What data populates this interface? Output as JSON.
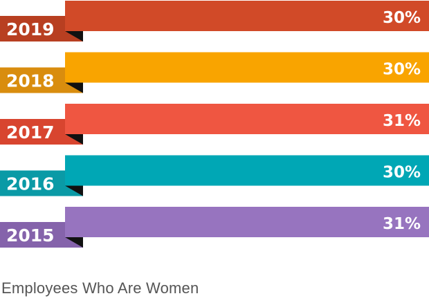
{
  "chart_data": {
    "type": "bar",
    "orientation": "horizontal",
    "categories": [
      "2019",
      "2018",
      "2017",
      "2016",
      "2015"
    ],
    "values": [
      30,
      30,
      31,
      30,
      31
    ],
    "value_suffix": "%",
    "data_labels": [
      "30%",
      "30%",
      "31%",
      "30%",
      "31%"
    ],
    "colors": [
      "#d14a28",
      "#f9a400",
      "#ef5641",
      "#00a7b5",
      "#9774bf"
    ],
    "tab_colors": [
      "#b83f21",
      "#d98d0e",
      "#d8452f",
      "#0a9aa6",
      "#8563ab"
    ],
    "caption": "Employees Who Are Women"
  }
}
